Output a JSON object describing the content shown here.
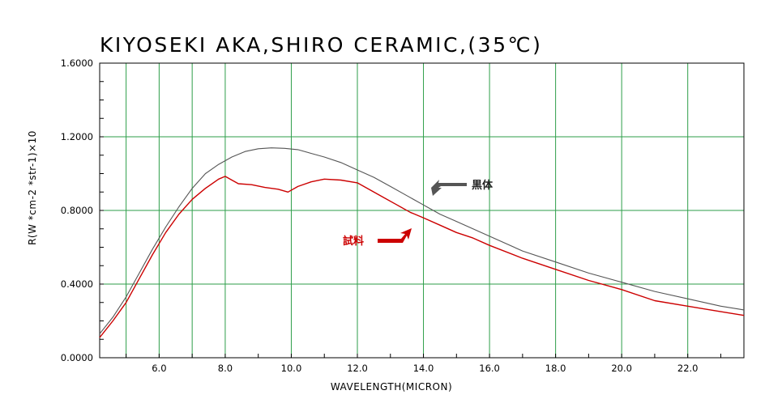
{
  "chart_data": {
    "type": "line",
    "title": "KIYOSEKI AKA,SHIRO CERAMIC,(35℃)",
    "xlabel": "WAVELENGTH(MICRON)",
    "ylabel": "R(W *cm-2 *str-1)×10",
    "xlim": [
      4.2,
      23.7
    ],
    "ylim": [
      0.0,
      1.6
    ],
    "x_ticks": [
      6,
      8,
      10,
      12,
      14,
      16,
      18,
      20,
      22
    ],
    "x_tick_labels": [
      "6.0",
      "8.0",
      "10.0",
      "12.0",
      "14.0",
      "16.0",
      "18.0",
      "20.0",
      "22.0"
    ],
    "y_ticks": [
      0,
      0.4,
      0.8,
      1.2,
      1.6
    ],
    "y_tick_labels": [
      "0.0000",
      "0.4000",
      "0.8000",
      "1.2000",
      "1.6000"
    ],
    "grid": true,
    "grid_color": "#2e9e4a",
    "series": [
      {
        "name": "黒体",
        "color": "#555555",
        "x": [
          4.2,
          4.6,
          5.0,
          5.4,
          5.8,
          6.2,
          6.6,
          7.0,
          7.4,
          7.8,
          8.2,
          8.6,
          9.0,
          9.4,
          9.8,
          10.2,
          10.6,
          11.0,
          11.5,
          12.0,
          12.5,
          13.0,
          13.5,
          14.0,
          14.5,
          15.0,
          15.5,
          16.0,
          17.0,
          18.0,
          19.0,
          20.0,
          21.0,
          22.0,
          23.0,
          23.7
        ],
        "y": [
          0.13,
          0.22,
          0.33,
          0.46,
          0.59,
          0.71,
          0.82,
          0.92,
          1.0,
          1.05,
          1.09,
          1.12,
          1.135,
          1.14,
          1.137,
          1.13,
          1.11,
          1.09,
          1.06,
          1.02,
          0.98,
          0.93,
          0.88,
          0.83,
          0.78,
          0.74,
          0.7,
          0.66,
          0.58,
          0.52,
          0.46,
          0.41,
          0.36,
          0.32,
          0.28,
          0.26
        ]
      },
      {
        "name": "試料",
        "color": "#cc0000",
        "x": [
          4.2,
          4.6,
          5.0,
          5.4,
          5.8,
          6.2,
          6.6,
          7.0,
          7.4,
          7.8,
          8.0,
          8.2,
          8.4,
          8.8,
          9.2,
          9.6,
          9.9,
          10.2,
          10.6,
          11.0,
          11.5,
          12.0,
          12.4,
          12.8,
          13.2,
          13.6,
          14.0,
          14.5,
          15.0,
          15.5,
          16.0,
          17.0,
          18.0,
          19.0,
          20.0,
          21.0,
          22.0,
          23.0,
          23.7
        ],
        "y": [
          0.11,
          0.2,
          0.3,
          0.43,
          0.56,
          0.68,
          0.78,
          0.86,
          0.92,
          0.97,
          0.985,
          0.965,
          0.945,
          0.94,
          0.925,
          0.915,
          0.9,
          0.93,
          0.955,
          0.97,
          0.965,
          0.95,
          0.91,
          0.87,
          0.83,
          0.79,
          0.76,
          0.72,
          0.68,
          0.65,
          0.61,
          0.54,
          0.48,
          0.42,
          0.37,
          0.31,
          0.28,
          0.25,
          0.23
        ]
      }
    ],
    "annotations": [
      {
        "text": "黒体",
        "color": "#222222"
      },
      {
        "text": "試料",
        "color": "#cc0000"
      }
    ]
  }
}
